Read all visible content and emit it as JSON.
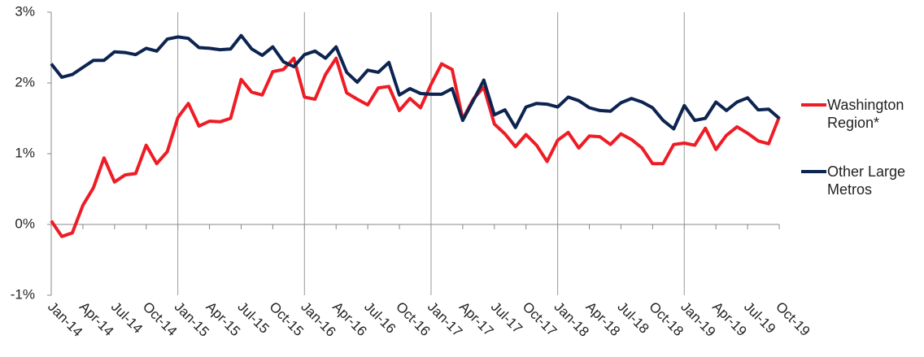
{
  "chart_data": {
    "type": "line",
    "categories": [
      "Jan-14",
      null,
      null,
      "Apr-14",
      null,
      null,
      "Jul-14",
      null,
      null,
      "Oct-14",
      null,
      null,
      "Jan-15",
      null,
      null,
      "Apr-15",
      null,
      null,
      "Jul-15",
      null,
      null,
      "Oct-15",
      null,
      null,
      "Jan-16",
      null,
      null,
      "Apr-16",
      null,
      null,
      "Jul-16",
      null,
      null,
      "Oct-16",
      null,
      null,
      "Jan-17",
      null,
      null,
      "Apr-17",
      null,
      null,
      "Jul-17",
      null,
      null,
      "Oct-17",
      null,
      null,
      "Jan-18",
      null,
      null,
      "Apr-18",
      null,
      null,
      "Jul-18",
      null,
      null,
      "Oct-18",
      null,
      null,
      "Jan-19",
      null,
      null,
      "Apr-19",
      null,
      null,
      "Jul-19",
      null,
      null,
      "Oct-19"
    ],
    "series": [
      {
        "name": "Washington Region*",
        "color": "#ee1c25",
        "values": [
          0.05,
          -0.17,
          -0.12,
          0.27,
          0.52,
          0.94,
          0.6,
          0.7,
          0.72,
          1.12,
          0.86,
          1.03,
          1.51,
          1.71,
          1.39,
          1.46,
          1.45,
          1.5,
          2.05,
          1.87,
          1.83,
          2.16,
          2.19,
          2.35,
          1.8,
          1.77,
          2.12,
          2.35,
          1.86,
          1.77,
          1.69,
          1.93,
          1.95,
          1.61,
          1.78,
          1.65,
          1.98,
          2.27,
          2.19,
          1.49,
          1.77,
          1.94,
          1.42,
          1.28,
          1.1,
          1.27,
          1.12,
          0.89,
          1.19,
          1.3,
          1.08,
          1.25,
          1.24,
          1.13,
          1.28,
          1.2,
          1.08,
          0.86,
          0.86,
          1.13,
          1.15,
          1.12,
          1.36,
          1.06,
          1.26,
          1.38,
          1.29,
          1.18,
          1.14,
          1.52
        ]
      },
      {
        "name": "Other Large Metros",
        "color": "#0d2450",
        "values": [
          2.27,
          2.08,
          2.12,
          2.22,
          2.32,
          2.32,
          2.44,
          2.43,
          2.4,
          2.49,
          2.45,
          2.62,
          2.65,
          2.63,
          2.5,
          2.49,
          2.47,
          2.48,
          2.67,
          2.48,
          2.39,
          2.51,
          2.3,
          2.23,
          2.4,
          2.45,
          2.35,
          2.51,
          2.15,
          2.01,
          2.18,
          2.15,
          2.29,
          1.83,
          1.92,
          1.85,
          1.84,
          1.84,
          1.92,
          1.47,
          1.75,
          2.04,
          1.55,
          1.62,
          1.37,
          1.66,
          1.71,
          1.7,
          1.66,
          1.8,
          1.75,
          1.65,
          1.61,
          1.6,
          1.72,
          1.78,
          1.73,
          1.65,
          1.47,
          1.35,
          1.68,
          1.47,
          1.5,
          1.73,
          1.61,
          1.73,
          1.79,
          1.62,
          1.63,
          1.5
        ]
      }
    ],
    "ylim": [
      -1,
      3
    ],
    "yticks": [
      {
        "value": -1,
        "label": "-1%"
      },
      {
        "value": 0,
        "label": "0%"
      },
      {
        "value": 1,
        "label": "1%"
      },
      {
        "value": 2,
        "label": "2%"
      },
      {
        "value": 3,
        "label": "3%"
      }
    ],
    "legend": "right"
  }
}
